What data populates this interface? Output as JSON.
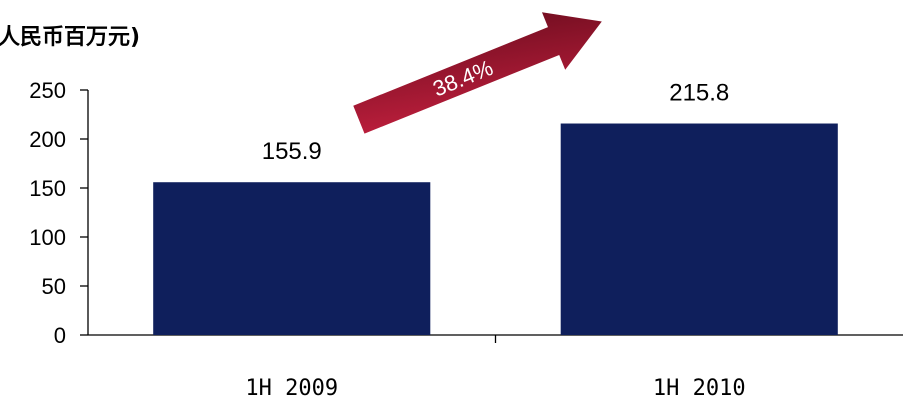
{
  "chart_data": {
    "type": "bar",
    "unit_label": "人民币百万元)",
    "categories": [
      "1H 2009",
      "1H 2010"
    ],
    "values": [
      155.9,
      215.8
    ],
    "value_labels": [
      "155.9",
      "215.8"
    ],
    "y_ticks": [
      "0",
      "50",
      "100",
      "150",
      "200",
      "250"
    ],
    "ylim": [
      0,
      250
    ],
    "growth_label": "38.4%",
    "colors": {
      "bar": "#0f1f5c",
      "arrow_start": "#c4203f",
      "arrow_end": "#6e0d1f"
    }
  }
}
